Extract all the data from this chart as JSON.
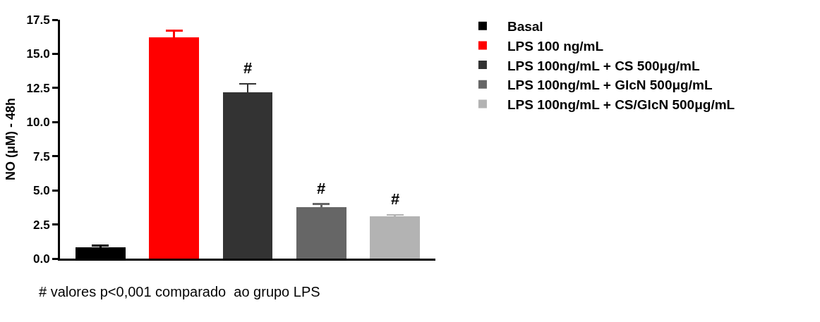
{
  "chart_data": {
    "type": "bar",
    "stacked": true,
    "categories": [
      null,
      null,
      null,
      null,
      null
    ],
    "ylabel": "NO (μM) - 48h",
    "series": [
      {
        "name": "Basal",
        "color": "#000000",
        "values": [
          0.85,
          null,
          null,
          null,
          null
        ],
        "errors": [
          0.1,
          null,
          null,
          null,
          null
        ]
      },
      {
        "name": "LPS 100 ng/mL",
        "color": "#ff0000",
        "values": [
          null,
          16.2,
          null,
          null,
          null
        ],
        "errors": [
          null,
          0.5,
          null,
          null,
          null
        ]
      },
      {
        "name": "LPS 100ng/mL + CS 500μg/mL",
        "color": "#333333",
        "values": [
          null,
          null,
          12.2,
          null,
          null
        ],
        "errors": [
          null,
          null,
          0.6,
          null,
          null
        ],
        "value_labels": [
          null,
          null,
          "#",
          null,
          null
        ]
      },
      {
        "name": "LPS 100ng/mL + GlcN 500μg/mL",
        "color": "#666666",
        "values": [
          null,
          null,
          null,
          3.75,
          null
        ],
        "errors": [
          null,
          null,
          null,
          0.25,
          null
        ],
        "value_labels": [
          null,
          null,
          null,
          "#",
          null
        ]
      },
      {
        "name": "LPS 100ng/mL + CS/GlcN 500μg/mL",
        "color": "#b3b3b3",
        "values": [
          null,
          null,
          null,
          null,
          3.1
        ],
        "errors": [
          null,
          null,
          null,
          null,
          0.1
        ],
        "value_labels": [
          null,
          null,
          null,
          null,
          "#"
        ]
      }
    ],
    "ylim": [
      0,
      17.5
    ],
    "yticks": [
      {
        "value": 0,
        "label": "0.0"
      },
      {
        "value": 2.5,
        "label": "2.5"
      },
      {
        "value": 5,
        "label": "5.0"
      },
      {
        "value": 7.5,
        "label": "7.5"
      },
      {
        "value": 10,
        "label": "10.0"
      },
      {
        "value": 12.5,
        "label": "12.5"
      },
      {
        "value": 15,
        "label": "15.0"
      },
      {
        "value": 17.5,
        "label": "17.5"
      }
    ],
    "grid": false,
    "legend": "top right",
    "annotations": [
      "# valores p<0,001 comparado  ao grupo LPS"
    ]
  }
}
